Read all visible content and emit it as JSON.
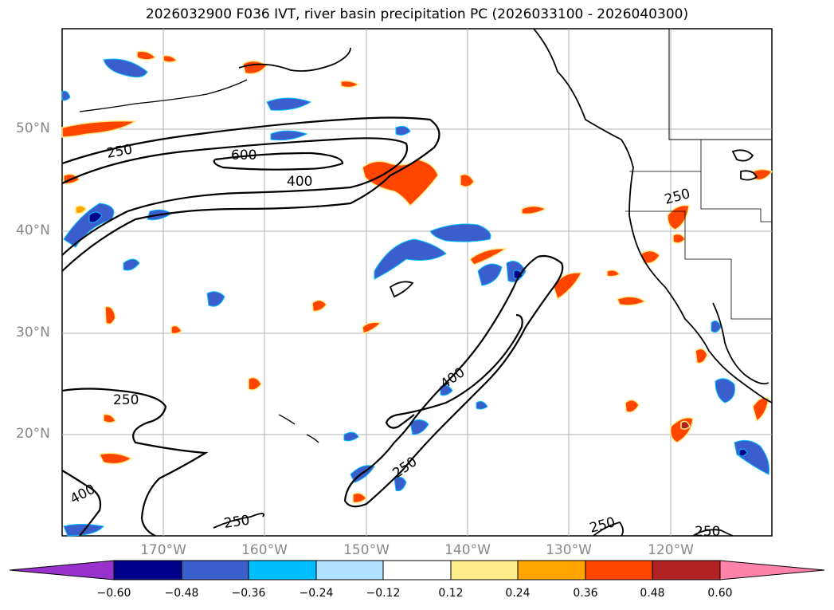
{
  "title": "2026032900 F036 IVT, river basin precipitation PC (2026033100 - 2026040300)",
  "latitude_labels": [
    "50°N",
    "40°N",
    "30°N",
    "20°N"
  ],
  "longitude_labels": [
    "170°W",
    "160°W",
    "150°W",
    "140°W",
    "130°W",
    "120°W"
  ],
  "contour_labels": [
    "250",
    "600",
    "400",
    "400",
    "250",
    "250",
    "400",
    "250",
    "250",
    "250",
    "250"
  ],
  "colorbar": {
    "tick_labels": [
      "−0.60",
      "−0.48",
      "−0.36",
      "−0.24",
      "−0.12",
      "0.12",
      "0.24",
      "0.36",
      "0.48",
      "0.60"
    ],
    "colors": [
      "#9932cc",
      "#00008b",
      "#3a5fcd",
      "#00bfff",
      "#b0e2ff",
      "#ffffff",
      "#ffec8b",
      "#ffa500",
      "#ff4500",
      "#b22222",
      "#ff82ab"
    ]
  },
  "map_colors": {
    "land_outline": "#000000",
    "grid": "#b0b0b0",
    "ivt_contour": "#000000"
  }
}
